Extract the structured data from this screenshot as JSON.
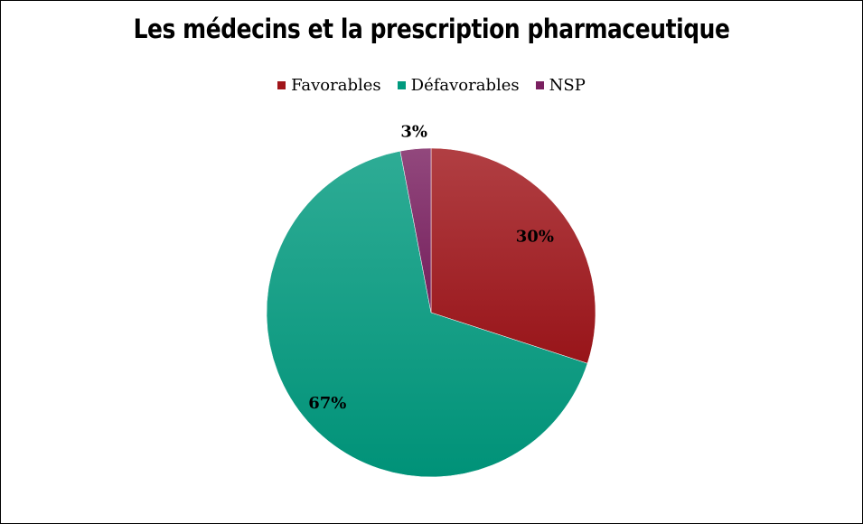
{
  "chart_data": {
    "type": "pie",
    "title": "Les médecins et la prescription pharmaceutique",
    "legend_position": "top",
    "slices": [
      {
        "name": "Favorables",
        "value": 30,
        "label": "30%",
        "color": "#a0151a"
      },
      {
        "name": "Défavorables",
        "value": 67,
        "label": "67%",
        "color": "#009a7e"
      },
      {
        "name": "NSP",
        "value": 3,
        "label": "3%",
        "color": "#7a2060"
      }
    ]
  }
}
